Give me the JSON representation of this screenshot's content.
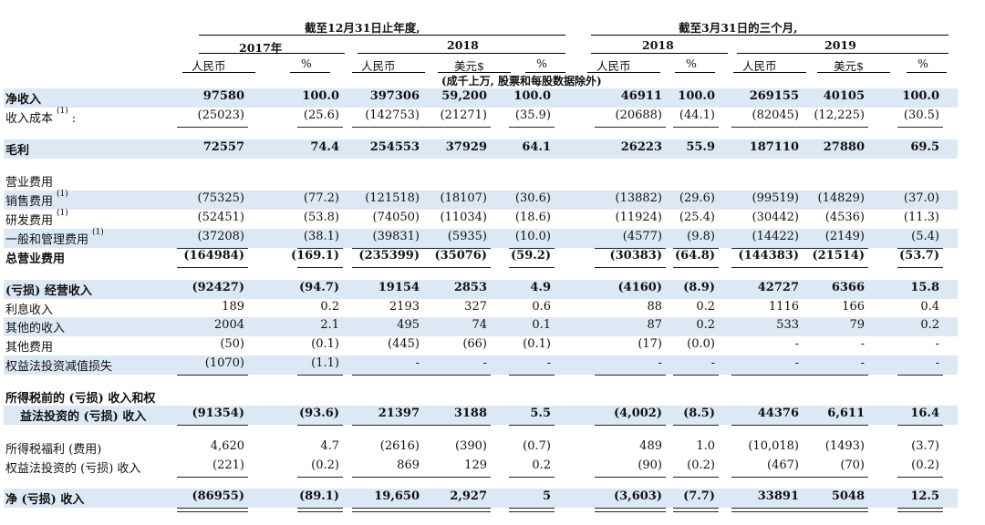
{
  "header": {
    "group_annual": "截至12月31日止年度,",
    "group_quarter": "截至3月31日的三个月,",
    "years": [
      "2017年",
      "2018",
      "2018",
      "2019"
    ],
    "columns": [
      "人民币",
      "%",
      "人民币",
      "美元$",
      "%",
      "人民币",
      "%",
      "人民币",
      "美元$",
      "%"
    ],
    "units_note": "(成千上万, 股票和每股数据除外)"
  },
  "rows": [
    {
      "label": "净收入",
      "bold": true,
      "band": true,
      "values": [
        "97580",
        "100.0",
        "397306",
        "59,200",
        "100.0",
        "46911",
        "100.0",
        "269155",
        "40105",
        "100.0"
      ]
    },
    {
      "label": "收入成本",
      "note": "(1)",
      "suffix": ":",
      "values": [
        "(25023)",
        "(25.6)",
        "(142753)",
        "(21271)",
        "(35.9)",
        "(20688)",
        "(44.1)",
        "(82045)",
        "(12,225)",
        "(30.5)"
      ]
    },
    {
      "label": "毛利",
      "bold": true,
      "band": true,
      "values": [
        "72557",
        "74.4",
        "254553",
        "37929",
        "64.1",
        "26223",
        "55.9",
        "187110",
        "27880",
        "69.5"
      ]
    },
    {
      "label": "营业费用",
      "values": []
    },
    {
      "label": "销售费用",
      "note": "(1)",
      "band": true,
      "values": [
        "(75325)",
        "(77.2)",
        "(121518)",
        "(18107)",
        "(30.6)",
        "(13882)",
        "(29.6)",
        "(99519)",
        "(14829)",
        "(37.0)"
      ]
    },
    {
      "label": "研发费用",
      "note": "(1)",
      "values": [
        "(52451)",
        "(53.8)",
        "(74050)",
        "(11034)",
        "(18.6)",
        "(11924)",
        "(25.4)",
        "(30442)",
        "(4536)",
        "(11.3)"
      ]
    },
    {
      "label": "一般和管理费用",
      "note": "(1)",
      "band": true,
      "values": [
        "(37208)",
        "(38.1)",
        "(39831)",
        "(5935)",
        "(10.0)",
        "(4577)",
        "(9.8)",
        "(14422)",
        "(2149)",
        "(5.4)"
      ]
    },
    {
      "label": "总营业费用",
      "bold": true,
      "values": [
        "(164984)",
        "(169.1)",
        "(235399)",
        "(35076)",
        "(59.2)",
        "(30383)",
        "(64.8)",
        "(144383)",
        "(21514)",
        "(53.7)"
      ]
    },
    {
      "label": "(亏损) 经营收入",
      "bold": true,
      "band": true,
      "values": [
        "(92427)",
        "(94.7)",
        "19154",
        "2853",
        "4.9",
        "(4160)",
        "(8.9)",
        "42727",
        "6366",
        "15.8"
      ]
    },
    {
      "label": "利息收入",
      "values": [
        "189",
        "0.2",
        "2193",
        "327",
        "0.6",
        "88",
        "0.2",
        "1116",
        "166",
        "0.4"
      ]
    },
    {
      "label": "其他的收入",
      "band": true,
      "values": [
        "2004",
        "2.1",
        "495",
        "74",
        "0.1",
        "87",
        "0.2",
        "533",
        "79",
        "0.2"
      ]
    },
    {
      "label": "其他费用",
      "values": [
        "(50)",
        "(0.1)",
        "(445)",
        "(66)",
        "(0.1)",
        "(17)",
        "(0.0)",
        "-",
        "-",
        "-"
      ]
    },
    {
      "label": "权益法投资减值损失",
      "band": true,
      "values": [
        "(1070)",
        "(1.1)",
        "-",
        "-",
        "-",
        "-",
        "-",
        "-",
        "-",
        "-"
      ]
    },
    {
      "label": "所得税前的 (亏损) 收入和权",
      "bold": true,
      "values": []
    },
    {
      "label": "益法投资的 (亏损) 收入",
      "bold": true,
      "band": true,
      "indent": true,
      "values": [
        "(91354)",
        "(93.6)",
        "21397",
        "3188",
        "5.5",
        "(4,002)",
        "(8.5)",
        "44376",
        "6,611",
        "16.4"
      ]
    },
    {
      "label": "所得税福利 (费用)",
      "values": [
        "4,620",
        "4.7",
        "(2616)",
        "(390)",
        "(0.7)",
        "489",
        "1.0",
        "(10,018)",
        "(1493)",
        "(3.7)"
      ]
    },
    {
      "label": "权益法投资的 (亏损) 收入",
      "values": [
        "(221)",
        "(0.2)",
        "869",
        "129",
        "0.2",
        "(90)",
        "(0.2)",
        "(467)",
        "(70)",
        "(0.2)"
      ]
    },
    {
      "label": "净 (亏损) 收入",
      "bold": true,
      "band": true,
      "values": [
        "(86955)",
        "(89.1)",
        "19,650",
        "2,927",
        "5",
        "(3,603)",
        "(7.7)",
        "33891",
        "5048",
        "12.5"
      ]
    }
  ]
}
